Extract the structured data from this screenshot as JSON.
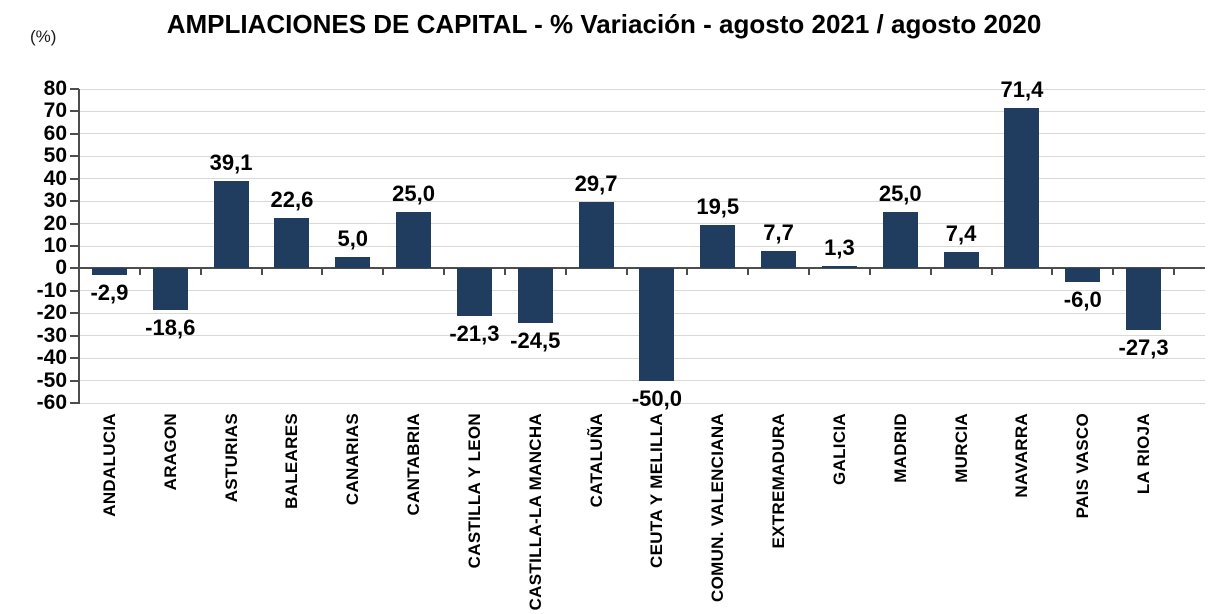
{
  "chart_data": {
    "type": "bar",
    "title": "AMPLIACIONES DE CAPITAL - % Variación - agosto 2021 / agosto 2020",
    "y_axis_unit_label": "(%)",
    "categories": [
      "ANDALUCIA",
      "ARAGON",
      "ASTURIAS",
      "BALEARES",
      "CANARIAS",
      "CANTABRIA",
      "CASTILLA Y LEON",
      "CASTILLA-LA MANCHA",
      "CATALUÑA",
      "CEUTA Y MELILLA",
      "COMUN. VALENCIANA",
      "EXTREMADURA",
      "GALICIA",
      "MADRID",
      "MURCIA",
      "NAVARRA",
      "PAIS VASCO",
      "LA RIOJA"
    ],
    "values": [
      -2.9,
      -18.6,
      39.1,
      22.6,
      5.0,
      25.0,
      -21.3,
      -24.5,
      29.7,
      -50.0,
      19.5,
      7.7,
      1.3,
      25.0,
      7.4,
      71.4,
      -6.0,
      -27.3
    ],
    "value_labels": [
      "-2,9",
      "-18,6",
      "39,1",
      "22,6",
      "5,0",
      "25,0",
      "-21,3",
      "-24,5",
      "29,7",
      "-50,0",
      "19,5",
      "7,7",
      "1,3",
      "25,0",
      "7,4",
      "71,4",
      "-6,0",
      "-27,3"
    ],
    "ylim": [
      -60,
      80
    ],
    "y_ticks": [
      80,
      70,
      60,
      50,
      40,
      30,
      20,
      10,
      0,
      -10,
      -20,
      -30,
      -40,
      -50,
      -60
    ],
    "grid": true,
    "legend": "none",
    "bar_color": "#203C5F",
    "gridline_color": "#D9D9D9",
    "axis_color": "#4D4D4D",
    "label_color": "#000000"
  }
}
